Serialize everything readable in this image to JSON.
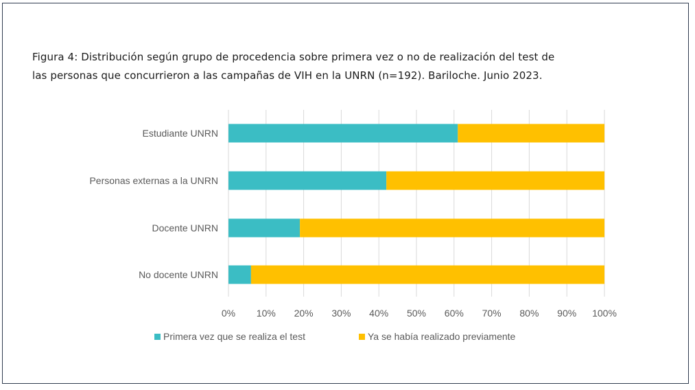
{
  "caption": {
    "line1": "Figura 4: Distribución según grupo de procedencia sobre primera vez o no de realización del test de",
    "line2": "las personas que concurrieron a las campañas de VIH en la UNRN (n=192). Bariloche. Junio 2023."
  },
  "chart_data": {
    "type": "bar",
    "orientation": "horizontal",
    "stacked": "percent",
    "categories": [
      "Estudiante UNRN",
      "Personas externas a la UNRN",
      "Docente UNRN",
      "No docente UNRN"
    ],
    "series": [
      {
        "name": "Primera vez que se realiza el test",
        "color": "#3bbdc4",
        "values": [
          61,
          42,
          19,
          6
        ]
      },
      {
        "name": "Ya se había realizado previamente",
        "color": "#ffc000",
        "values": [
          39,
          58,
          81,
          94
        ]
      }
    ],
    "xlim": [
      0,
      100
    ],
    "xticks": [
      "0%",
      "10%",
      "20%",
      "30%",
      "40%",
      "50%",
      "60%",
      "70%",
      "80%",
      "90%",
      "100%"
    ],
    "grid": true,
    "legend_position": "bottom"
  }
}
